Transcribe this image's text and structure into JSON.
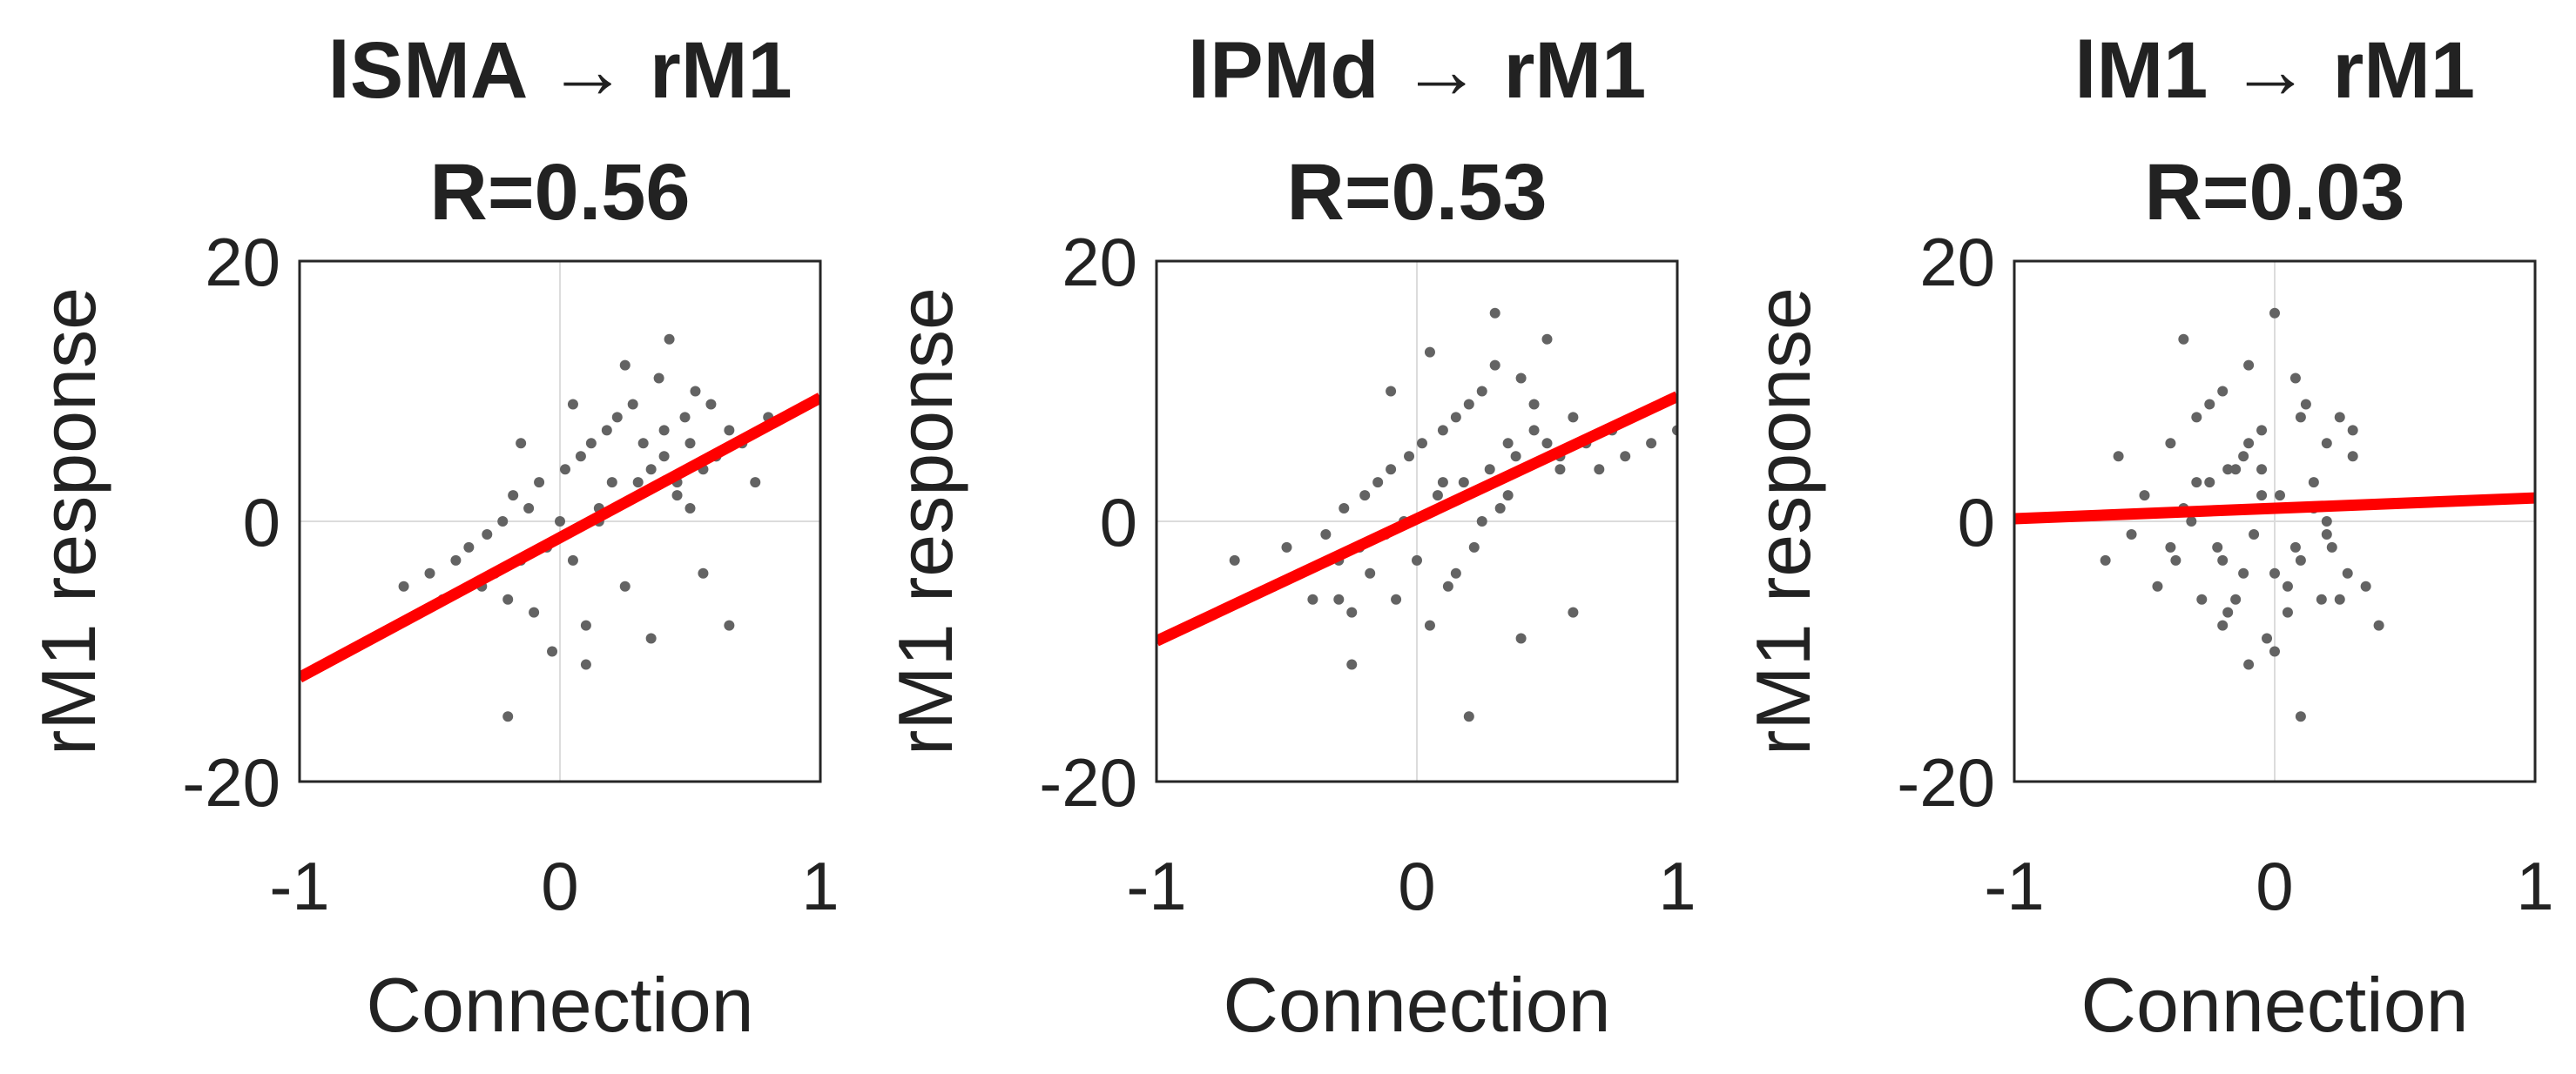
{
  "chart_data": [
    {
      "type": "scatter",
      "title": "lSMA → rM1",
      "subtitle": "R=0.56",
      "xlabel": "Connection",
      "ylabel": "rM1 response",
      "xlim": [
        -1,
        1
      ],
      "ylim": [
        -20,
        20
      ],
      "xticks": [
        "-1",
        "0",
        "1"
      ],
      "yticks": [
        "20",
        "0",
        "-20"
      ],
      "grid": "zero-lines",
      "fit_line": {
        "x": [
          -1,
          1
        ],
        "y": [
          -12,
          9.5
        ],
        "color": "#ff0000"
      },
      "point_color": "#636363",
      "series": [
        {
          "name": "points",
          "x": [
            -0.6,
            -0.5,
            -0.45,
            -0.4,
            -0.35,
            -0.3,
            -0.28,
            -0.25,
            -0.22,
            -0.2,
            -0.18,
            -0.15,
            -0.12,
            -0.1,
            -0.08,
            -0.05,
            -0.03,
            0,
            0.02,
            0.05,
            0.08,
            0.1,
            0.12,
            0.15,
            0.18,
            0.2,
            0.22,
            0.25,
            0.28,
            0.3,
            0.32,
            0.35,
            0.38,
            0.4,
            0.42,
            0.45,
            0.48,
            0.5,
            0.52,
            0.55,
            0.58,
            0.6,
            0.65,
            0.7,
            0.75,
            0.8,
            -0.2,
            0.1,
            0.35,
            0.65,
            -0.15,
            0.05,
            0.25,
            0.45,
            0.55,
            0.15,
            0.3,
            0.4,
            0.5,
            0.6
          ],
          "y": [
            -5,
            -4,
            -6,
            -3,
            -2,
            -5,
            -1,
            -4,
            0,
            -6,
            2,
            -3,
            1,
            -7,
            3,
            -2,
            -10,
            0,
            4,
            -3,
            5,
            -8,
            6,
            1,
            7,
            3,
            8,
            -5,
            9,
            2,
            6,
            4,
            11,
            5,
            14,
            3,
            8,
            6,
            10,
            4,
            9,
            5,
            7,
            6,
            3,
            8,
            -15,
            -11,
            -9,
            -8,
            6,
            9,
            12,
            2,
            -4,
            0,
            3,
            7,
            1,
            5
          ]
        }
      ]
    },
    {
      "type": "scatter",
      "title": "lPMd → rM1",
      "subtitle": "R=0.53",
      "xlabel": "Connection",
      "ylabel": "rM1 response",
      "xlim": [
        -1,
        1
      ],
      "ylim": [
        -20,
        20
      ],
      "xticks": [
        "-1",
        "0",
        "1"
      ],
      "yticks": [
        "20",
        "0",
        "-20"
      ],
      "grid": "zero-lines",
      "fit_line": {
        "x": [
          -1,
          1
        ],
        "y": [
          -9.2,
          9.6
        ],
        "color": "#ff0000"
      },
      "point_color": "#636363",
      "series": [
        {
          "name": "points",
          "x": [
            -0.7,
            -0.55,
            -0.5,
            -0.45,
            -0.4,
            -0.35,
            -0.3,
            -0.28,
            -0.25,
            -0.22,
            -0.2,
            -0.18,
            -0.15,
            -0.12,
            -0.1,
            -0.08,
            -0.05,
            -0.03,
            0,
            0.02,
            0.05,
            0.08,
            0.1,
            0.12,
            0.15,
            0.18,
            0.2,
            0.22,
            0.25,
            0.28,
            0.3,
            0.32,
            0.35,
            0.38,
            0.4,
            0.45,
            0.5,
            0.55,
            0.6,
            0.65,
            0.7,
            0.75,
            0.8,
            0.9,
            1.0,
            -0.25,
            0.2,
            0.4,
            0.6,
            -0.1,
            0.05,
            0.3,
            0.5,
            0.1,
            0.25,
            0.35,
            -0.3,
            0.15,
            0.45,
            0.55
          ],
          "y": [
            -3,
            -5,
            -2,
            -4,
            -6,
            -1,
            -3,
            1,
            -7,
            -2,
            2,
            -4,
            3,
            -1,
            4,
            -6,
            0,
            5,
            -3,
            6,
            -8,
            2,
            7,
            -5,
            8,
            3,
            9,
            -2,
            10,
            4,
            12,
            1,
            6,
            5,
            11,
            7,
            6,
            5,
            8,
            6,
            4,
            7,
            5,
            6,
            7,
            -11,
            -15,
            -9,
            -7,
            10,
            13,
            16,
            14,
            3,
            0,
            2,
            -6,
            -4,
            9,
            4
          ]
        }
      ]
    },
    {
      "type": "scatter",
      "title": "lM1 → rM1",
      "subtitle": "R=0.03",
      "xlabel": "Connection",
      "ylabel": "rM1 response",
      "xlim": [
        -1,
        1
      ],
      "ylim": [
        -20,
        20
      ],
      "xticks": [
        "-1",
        "0",
        "1"
      ],
      "yticks": [
        "20",
        "0",
        "-20"
      ],
      "grid": "zero-lines",
      "fit_line": {
        "x": [
          -1,
          1
        ],
        "y": [
          0.2,
          1.8
        ],
        "color": "#ff0000"
      },
      "point_color": "#636363",
      "series": [
        {
          "name": "points",
          "x": [
            -0.65,
            -0.6,
            -0.55,
            -0.5,
            -0.45,
            -0.4,
            -0.38,
            -0.35,
            -0.32,
            -0.3,
            -0.28,
            -0.25,
            -0.22,
            -0.2,
            -0.18,
            -0.15,
            -0.12,
            -0.1,
            -0.08,
            -0.05,
            -0.03,
            0,
            0.02,
            0.05,
            0.08,
            0.1,
            0.12,
            0.15,
            0.18,
            0.2,
            0.22,
            0.25,
            0.28,
            0.3,
            0.35,
            0.4,
            -0.4,
            -0.3,
            -0.2,
            -0.1,
            0,
            0.1,
            0.2,
            0.3,
            -0.25,
            -0.15,
            -0.05,
            0.05,
            0.15,
            -0.35,
            -0.2,
            -0.1,
            0,
            0.1,
            0.2,
            -0.05,
            -0.12,
            0.08,
            0.25,
            -0.18
          ],
          "y": [
            -3,
            5,
            -1,
            2,
            -5,
            6,
            -3,
            14,
            0,
            8,
            -6,
            3,
            -2,
            10,
            -7,
            4,
            -4,
            12,
            -1,
            7,
            -9,
            16,
            2,
            -5,
            11,
            -3,
            9,
            1,
            -6,
            6,
            -2,
            8,
            -4,
            5,
            -5,
            -8,
            -2,
            3,
            -8,
            -11,
            -10,
            -15,
            0,
            7,
            9,
            -6,
            4,
            -7,
            3,
            1,
            -3,
            6,
            -4,
            8,
            -1,
            2,
            5,
            -2,
            -6,
            4
          ]
        }
      ]
    }
  ]
}
